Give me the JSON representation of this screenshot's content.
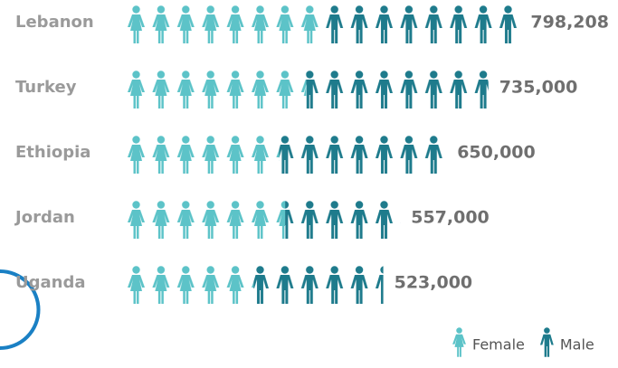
{
  "chart_data": {
    "type": "pictograph",
    "categories": [
      "Lebanon",
      "Turkey",
      "Ethiopia",
      "Jordan",
      "Uganda"
    ],
    "values": [
      798208,
      735000,
      650000,
      557000,
      523000
    ],
    "value_labels": [
      "798,208",
      "735,000",
      "650,000",
      "557,000",
      "523,000"
    ],
    "series": [
      {
        "name": "Female",
        "color": "#5cc3c8",
        "values": [
          399104,
          367500,
          313000,
          325000,
          261500
        ]
      },
      {
        "name": "Male",
        "color": "#1e7b8c",
        "values": [
          399104,
          367500,
          337000,
          232000,
          261500
        ]
      }
    ]
  }
}
